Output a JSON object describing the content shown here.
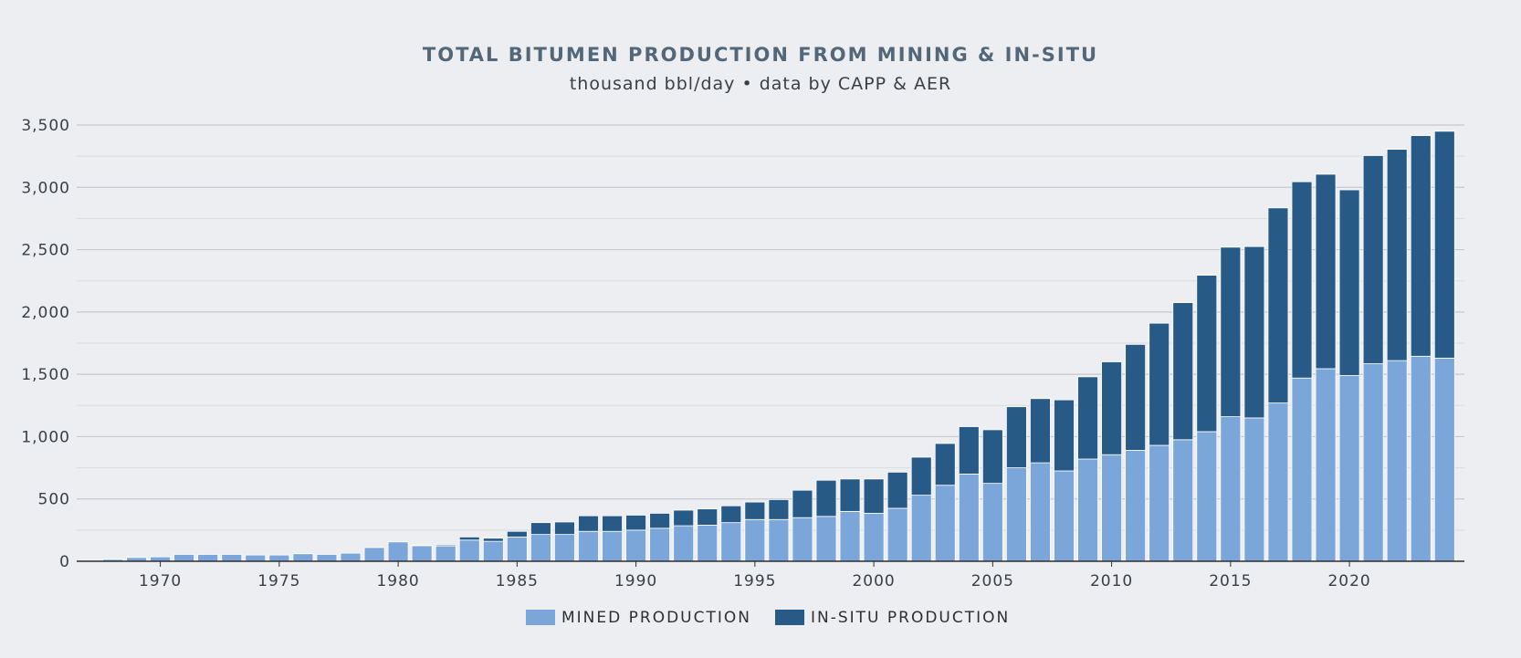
{
  "chart_data": {
    "type": "bar",
    "stacked": true,
    "title": "TOTAL BITUMEN PRODUCTION FROM MINING & IN-SITU",
    "subtitle": "thousand bbl/day • data by CAPP & AER",
    "x": [
      1968,
      1969,
      1970,
      1971,
      1972,
      1973,
      1974,
      1975,
      1976,
      1977,
      1978,
      1979,
      1980,
      1981,
      1982,
      1983,
      1984,
      1985,
      1986,
      1987,
      1988,
      1989,
      1990,
      1991,
      1992,
      1993,
      1994,
      1995,
      1996,
      1997,
      1998,
      1999,
      2000,
      2001,
      2002,
      2003,
      2004,
      2005,
      2006,
      2007,
      2008,
      2009,
      2010,
      2011,
      2012,
      2013,
      2014,
      2015,
      2016,
      2017,
      2018,
      2019,
      2020,
      2021,
      2022,
      2023,
      2024
    ],
    "x_ticks": [
      1970,
      1975,
      1980,
      1985,
      1990,
      1995,
      2000,
      2005,
      2010,
      2015,
      2020
    ],
    "x_tick_labels": [
      "1970",
      "1975",
      "1980",
      "1985",
      "1990",
      "1995",
      "2000",
      "2005",
      "2010",
      "2015",
      "2020"
    ],
    "series": [
      {
        "name": "MINED PRODUCTION",
        "color": "#7aa6da",
        "values": [
          15,
          30,
          35,
          55,
          55,
          55,
          50,
          50,
          60,
          55,
          65,
          110,
          155,
          125,
          120,
          170,
          160,
          195,
          215,
          215,
          240,
          240,
          250,
          265,
          285,
          290,
          310,
          335,
          335,
          350,
          360,
          400,
          385,
          425,
          530,
          610,
          700,
          625,
          750,
          790,
          725,
          820,
          855,
          890,
          930,
          975,
          1040,
          1160,
          1150,
          1270,
          1470,
          1545,
          1490,
          1585,
          1610,
          1645,
          1630
        ]
      },
      {
        "name": "IN-SITU PRODUCTION",
        "color": "#285a87",
        "values": [
          0,
          0,
          0,
          0,
          0,
          0,
          0,
          0,
          0,
          0,
          0,
          0,
          0,
          5,
          10,
          25,
          25,
          45,
          95,
          100,
          125,
          125,
          120,
          120,
          125,
          130,
          135,
          140,
          160,
          220,
          290,
          260,
          275,
          290,
          305,
          335,
          380,
          430,
          490,
          515,
          570,
          660,
          745,
          850,
          980,
          1100,
          1255,
          1360,
          1375,
          1565,
          1575,
          1560,
          1490,
          1670,
          1695,
          1770,
          1820
        ]
      }
    ],
    "y_ticks": [
      0,
      500,
      1000,
      1500,
      2000,
      2500,
      3000,
      3500
    ],
    "y_tick_labels": [
      "0",
      "500",
      "1,000",
      "1,500",
      "2,000",
      "2,500",
      "3,000",
      "3,500"
    ],
    "ylim": [
      0,
      3500
    ],
    "xlabel": "",
    "ylabel": "",
    "grid": true,
    "legend": "bottom-center"
  },
  "style": {
    "background": "#eceef1",
    "title_color": "#546779",
    "text_color": "#3a3f45",
    "major_grid_color": "#c5c8cc",
    "minor_grid_color": "#dadde0",
    "axis_color": "#2f2f2f"
  }
}
